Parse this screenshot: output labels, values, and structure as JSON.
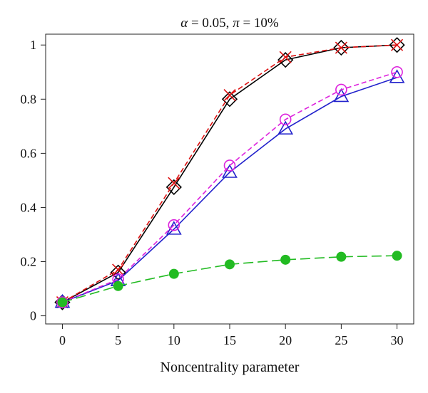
{
  "chart_data": {
    "type": "line",
    "title": "α = 0.05, π = 10%",
    "title_parts": {
      "alpha_symbol": "α",
      "alpha_text": " = 0.05, ",
      "pi_symbol": "π",
      "pi_text": " = 10%"
    },
    "xlabel": "Noncentrality parameter",
    "ylabel": "",
    "x": [
      0,
      5,
      10,
      15,
      20,
      25,
      30
    ],
    "xlim": [
      -1.5,
      31.5
    ],
    "ylim": [
      -0.03,
      1.04
    ],
    "xticks": [
      "0",
      "5",
      "10",
      "15",
      "20",
      "25",
      "30"
    ],
    "yticks": [
      "0",
      "0.2",
      "0.4",
      "0.6",
      "0.8",
      "1"
    ],
    "grid": false,
    "legend": "none",
    "series": [
      {
        "values": [
          0.05,
          0.16,
          0.475,
          0.8,
          0.945,
          0.99,
          1.0
        ],
        "color": "#000000",
        "marker": "diamond",
        "line": "solid"
      },
      {
        "values": [
          0.05,
          0.17,
          0.49,
          0.815,
          0.955,
          0.99,
          1.0
        ],
        "color": "#dd1111",
        "marker": "x",
        "line": "dashed"
      },
      {
        "values": [
          0.05,
          0.13,
          0.32,
          0.53,
          0.69,
          0.81,
          0.88
        ],
        "color": "#2222cc",
        "marker": "triangle",
        "line": "solid"
      },
      {
        "values": [
          0.05,
          0.135,
          0.335,
          0.555,
          0.725,
          0.835,
          0.9
        ],
        "color": "#dd22dd",
        "marker": "circle-open",
        "line": "dashed"
      },
      {
        "values": [
          0.05,
          0.11,
          0.155,
          0.19,
          0.207,
          0.218,
          0.222
        ],
        "color": "#22bb22",
        "marker": "circle-filled",
        "line": "longdash"
      }
    ]
  }
}
